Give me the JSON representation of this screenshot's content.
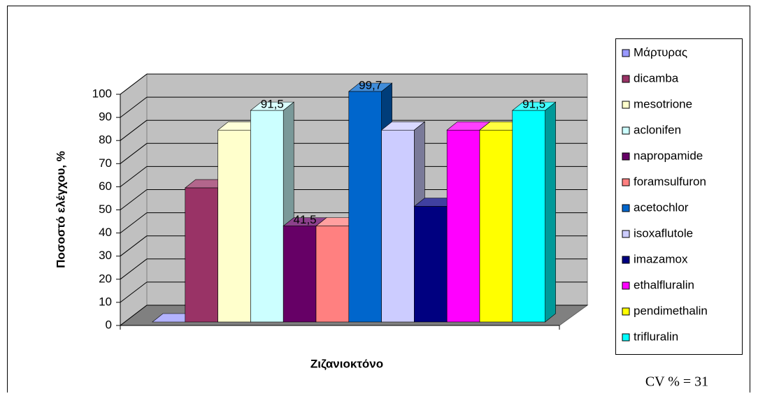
{
  "chart_data": {
    "type": "bar3d",
    "y_label": "Ποσοστό ελέγχου, %",
    "x_label": "Ζιζανιοκτόνο",
    "annotation": "CV % = 31",
    "ylim": [
      0,
      100
    ],
    "yticks": [
      0,
      10,
      20,
      30,
      40,
      50,
      60,
      70,
      80,
      90,
      100
    ],
    "grid": true,
    "legend": "right",
    "label_color": "#ffff00",
    "series": [
      {
        "name": "Μάρτυρας",
        "color": "#9999ff",
        "values": [
          0
        ]
      },
      {
        "name": "dicamba",
        "color": "#993366",
        "values": [
          58
        ]
      },
      {
        "name": "mesotrione",
        "color": "#ffffcc",
        "values": [
          83
        ]
      },
      {
        "name": "aclonifen",
        "color": "#ccffff",
        "values": [
          91.5
        ],
        "value_labels": [
          "91,5"
        ]
      },
      {
        "name": "napropamide",
        "color": "#660066",
        "values": [
          41.5
        ],
        "value_labels": [
          "41,5"
        ]
      },
      {
        "name": "foramsulfuron",
        "color": "#ff8080",
        "values": [
          41.5
        ]
      },
      {
        "name": "acetochlor",
        "color": "#0066cc",
        "values": [
          99.7
        ],
        "value_labels": [
          "99,7"
        ]
      },
      {
        "name": "isoxaflutole",
        "color": "#ccccff",
        "values": [
          83
        ]
      },
      {
        "name": "imazamox",
        "color": "#000080",
        "values": [
          50
        ]
      },
      {
        "name": "ethalfluralin",
        "color": "#ff00ff",
        "values": [
          83
        ]
      },
      {
        "name": "pendimethalin",
        "color": "#ffff00",
        "values": [
          83
        ]
      },
      {
        "name": "trifluralin",
        "color": "#00ffff",
        "values": [
          91.5
        ],
        "value_labels": [
          "91,5"
        ]
      }
    ]
  }
}
